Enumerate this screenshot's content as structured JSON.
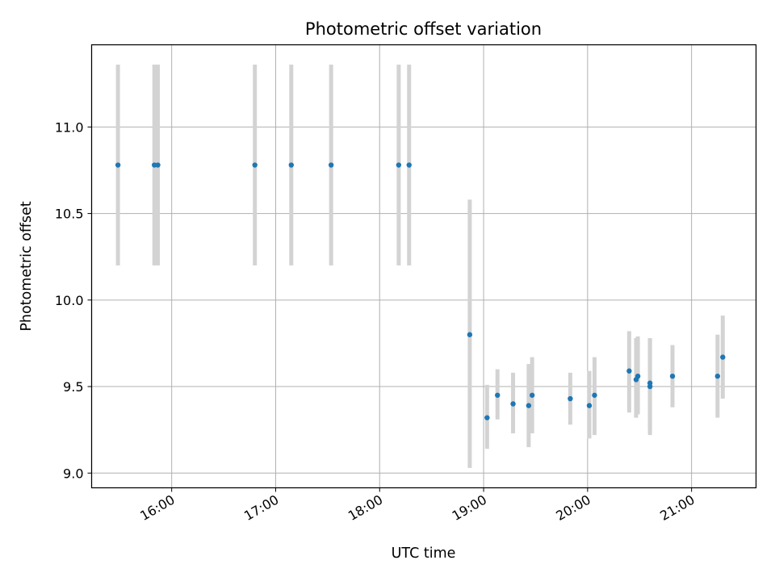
{
  "chart_data": {
    "type": "scatter",
    "title": "Photometric offset variation",
    "xlabel": "UTC time",
    "ylabel": "Photometric offset",
    "grid": true,
    "xlim_hours": [
      15.23,
      21.62
    ],
    "ylim": [
      8.915,
      11.475
    ],
    "x_ticks": [
      {
        "value": 16,
        "label": "16:00"
      },
      {
        "value": 17,
        "label": "17:00"
      },
      {
        "value": 18,
        "label": "18:00"
      },
      {
        "value": 19,
        "label": "19:00"
      },
      {
        "value": 20,
        "label": "20:00"
      },
      {
        "value": 21,
        "label": "21:00"
      }
    ],
    "y_ticks": [
      {
        "value": 9.0,
        "label": "9.0"
      },
      {
        "value": 9.5,
        "label": "9.5"
      },
      {
        "value": 10.0,
        "label": "10.0"
      },
      {
        "value": 10.5,
        "label": "10.5"
      },
      {
        "value": 11.0,
        "label": "11.0"
      }
    ],
    "colors": {
      "points": "#1f77b4",
      "errorbars": "#d3d3d3",
      "grid": "#b0b0b0"
    },
    "points": [
      {
        "x": "15:29",
        "y": 10.78,
        "low": 10.2,
        "high": 11.36
      },
      {
        "x": "15:50",
        "y": 10.78,
        "low": 10.2,
        "high": 11.36
      },
      {
        "x": "15:52",
        "y": 10.78,
        "low": 10.2,
        "high": 11.36
      },
      {
        "x": "16:48",
        "y": 10.78,
        "low": 10.2,
        "high": 11.36
      },
      {
        "x": "17:09",
        "y": 10.78,
        "low": 10.2,
        "high": 11.36
      },
      {
        "x": "17:32",
        "y": 10.78,
        "low": 10.2,
        "high": 11.36
      },
      {
        "x": "18:11",
        "y": 10.78,
        "low": 10.2,
        "high": 11.36
      },
      {
        "x": "18:17",
        "y": 10.78,
        "low": 10.2,
        "high": 11.36
      },
      {
        "x": "18:52",
        "y": 9.8,
        "low": 9.03,
        "high": 10.58
      },
      {
        "x": "19:02",
        "y": 9.32,
        "low": 9.14,
        "high": 9.51
      },
      {
        "x": "19:08",
        "y": 9.45,
        "low": 9.31,
        "high": 9.6
      },
      {
        "x": "19:17",
        "y": 9.4,
        "low": 9.23,
        "high": 9.58
      },
      {
        "x": "19:26",
        "y": 9.39,
        "low": 9.15,
        "high": 9.63
      },
      {
        "x": "19:28",
        "y": 9.45,
        "low": 9.23,
        "high": 9.67
      },
      {
        "x": "19:50",
        "y": 9.43,
        "low": 9.28,
        "high": 9.58
      },
      {
        "x": "20:01",
        "y": 9.39,
        "low": 9.2,
        "high": 9.59
      },
      {
        "x": "20:04",
        "y": 9.45,
        "low": 9.22,
        "high": 9.67
      },
      {
        "x": "20:24",
        "y": 9.59,
        "low": 9.35,
        "high": 9.82
      },
      {
        "x": "20:28",
        "y": 9.54,
        "low": 9.32,
        "high": 9.78
      },
      {
        "x": "20:29",
        "y": 9.56,
        "low": 9.34,
        "high": 9.79
      },
      {
        "x": "20:36",
        "y": 9.5,
        "low": 9.22,
        "high": 9.78
      },
      {
        "x": "20:36",
        "y": 9.52,
        "low": 9.25,
        "high": 9.78
      },
      {
        "x": "20:49",
        "y": 9.56,
        "low": 9.38,
        "high": 9.74
      },
      {
        "x": "21:15",
        "y": 9.56,
        "low": 9.32,
        "high": 9.8
      },
      {
        "x": "21:18",
        "y": 9.67,
        "low": 9.43,
        "high": 9.91
      }
    ]
  }
}
